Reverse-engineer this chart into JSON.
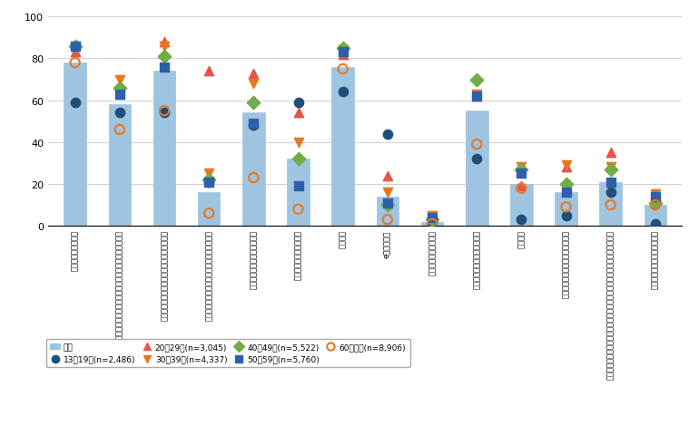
{
  "bar_values": [
    78,
    58,
    74,
    16,
    54,
    32,
    76,
    14,
    2,
    55,
    20,
    16,
    21,
    10
  ],
  "series": {
    "13-19": [
      59,
      54,
      54,
      21,
      48,
      59,
      64,
      44,
      2,
      32,
      3,
      5,
      16,
      1
    ],
    "20-29": [
      83,
      65,
      88,
      74,
      73,
      54,
      82,
      24,
      4,
      62,
      19,
      28,
      35,
      15
    ],
    "30-39": [
      86,
      70,
      86,
      25,
      68,
      40,
      84,
      16,
      5,
      63,
      28,
      29,
      28,
      15
    ],
    "40-49": [
      86,
      66,
      81,
      22,
      59,
      32,
      85,
      10,
      3,
      70,
      27,
      20,
      27,
      11
    ],
    "50-59": [
      86,
      63,
      76,
      21,
      49,
      19,
      83,
      11,
      4,
      62,
      25,
      16,
      21,
      14
    ],
    "60+": [
      78,
      46,
      55,
      6,
      23,
      8,
      75,
      3,
      1,
      39,
      18,
      9,
      10,
      10
    ]
  },
  "xlabels": [
    "電子メールの送受信",
    "ホームページやブログの閲覧、書き込み又は開設・更新",
    "ソーシャルネットワーキングサービスの利用",
    "業務目的でのオンライン会議システムの利用",
    "動画投稿・共有サイトの利用",
    "オンラインゲームの利用",
    "情報検索",
    "eラーニング",
    "オンライン診療の利用",
    "商品・サービスの購入・取引",
    "金融取引",
    "デジタルコンテンツの購入・取引",
    "インターネットオークション、フリーマーケットアプリによる購入・取引",
    "電子政府・電子自治体の利用"
  ],
  "bar_color": "#9EC4E0",
  "ylim": [
    0,
    100
  ],
  "yticks": [
    0,
    20,
    40,
    60,
    80,
    100
  ],
  "figsize": [
    7.59,
    4.81
  ],
  "dpi": 100,
  "ylabel_text": "(%)"
}
